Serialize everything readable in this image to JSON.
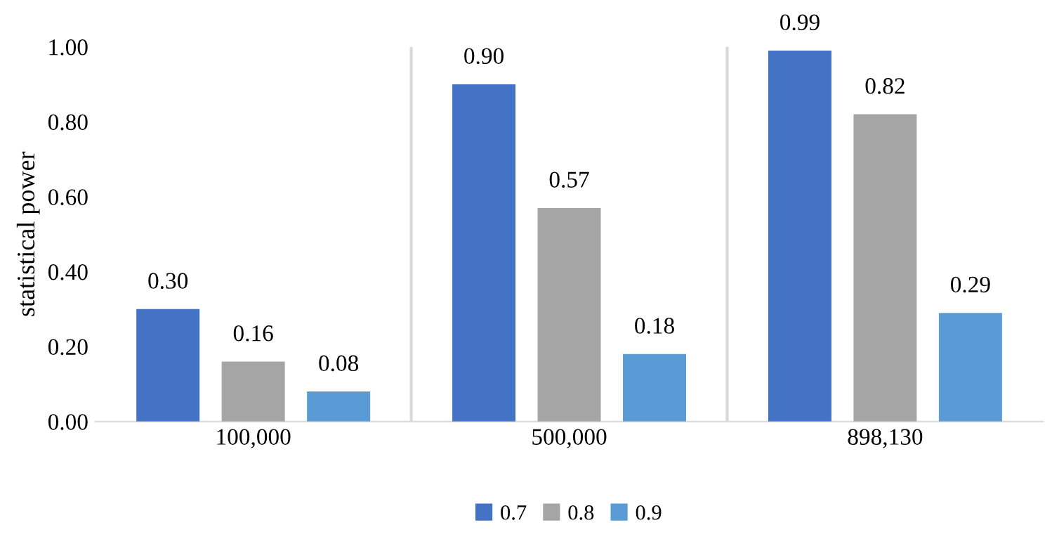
{
  "chart_data": {
    "type": "bar",
    "ylabel": "statistical power",
    "categories": [
      "100,000",
      "500,000",
      "898,130"
    ],
    "series": [
      {
        "name": "0.7",
        "color": "#4472c4",
        "values": [
          0.3,
          0.9,
          0.99
        ]
      },
      {
        "name": "0.8",
        "color": "#a5a5a5",
        "values": [
          0.16,
          0.57,
          0.82
        ]
      },
      {
        "name": "0.9",
        "color": "#5b9bd5",
        "values": [
          0.08,
          0.18,
          0.29
        ]
      }
    ],
    "value_labels": [
      [
        "0.30",
        "0.90",
        "0.99"
      ],
      [
        "0.16",
        "0.57",
        "0.82"
      ],
      [
        "0.08",
        "0.18",
        "0.29"
      ]
    ],
    "ylim": [
      0,
      1
    ],
    "yticks": [
      {
        "value": 0,
        "label": "0.00"
      },
      {
        "value": 0.2,
        "label": "0.20"
      },
      {
        "value": 0.4,
        "label": "0.40"
      },
      {
        "value": 0.6,
        "label": "0.60"
      },
      {
        "value": 0.8,
        "label": "0.80"
      },
      {
        "value": 1,
        "label": "1.00"
      }
    ],
    "grid": "x",
    "legend": "bottom"
  }
}
